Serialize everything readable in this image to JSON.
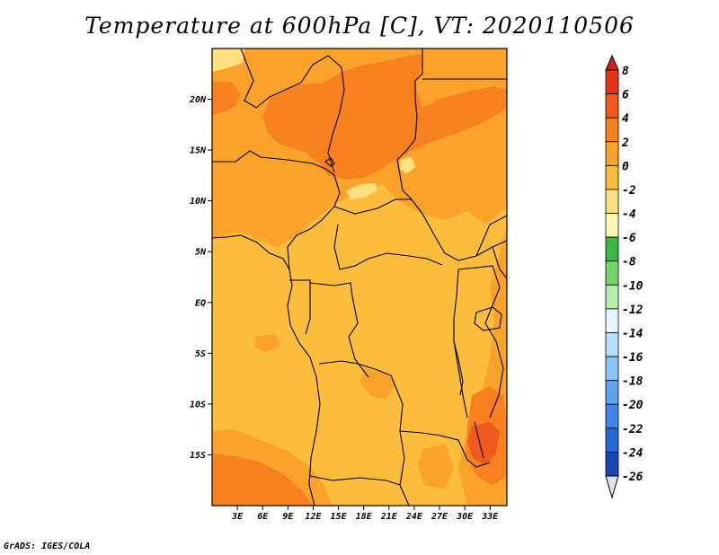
{
  "title": "Temperature at 600hPa [C], VT: 2020110506",
  "footer": "GrADS: IGES/COLA",
  "map": {
    "lon_range": [
      0,
      35
    ],
    "lat_range": [
      -20,
      25
    ],
    "lat_ticks": [
      {
        "value": 20,
        "label": "20N"
      },
      {
        "value": 15,
        "label": "15N"
      },
      {
        "value": 10,
        "label": "10N"
      },
      {
        "value": 5,
        "label": "5N"
      },
      {
        "value": 0,
        "label": "EQ"
      },
      {
        "value": -5,
        "label": "5S"
      },
      {
        "value": -10,
        "label": "10S"
      },
      {
        "value": -15,
        "label": "15S"
      }
    ],
    "lon_ticks": [
      {
        "value": 3,
        "label": "3E"
      },
      {
        "value": 6,
        "label": "6E"
      },
      {
        "value": 9,
        "label": "9E"
      },
      {
        "value": 12,
        "label": "12E"
      },
      {
        "value": 15,
        "label": "15E"
      },
      {
        "value": 18,
        "label": "18E"
      },
      {
        "value": 21,
        "label": "21E"
      },
      {
        "value": 24,
        "label": "24E"
      },
      {
        "value": 27,
        "label": "27E"
      },
      {
        "value": 30,
        "label": "30E"
      },
      {
        "value": 33,
        "label": "33E"
      }
    ]
  },
  "colorbar": {
    "levels": [
      {
        "label": "8",
        "color": "#e33215"
      },
      {
        "label": "6",
        "color": "#f05a1e"
      },
      {
        "label": "4",
        "color": "#f8811f"
      },
      {
        "label": "2",
        "color": "#fba22a"
      },
      {
        "label": "0",
        "color": "#fdbd3c"
      },
      {
        "label": "-2",
        "color": "#fde07f"
      },
      {
        "label": "-4",
        "color": "#fef6b3"
      },
      {
        "label": "-6",
        "color": "#3cb940"
      },
      {
        "label": "-8",
        "color": "#77d56a"
      },
      {
        "label": "-10",
        "color": "#b8ecaa"
      },
      {
        "label": "-12",
        "color": "#e3f7fd"
      },
      {
        "label": "-14",
        "color": "#b5dffa"
      },
      {
        "label": "-16",
        "color": "#88c4f6"
      },
      {
        "label": "-18",
        "color": "#5ea3ef"
      },
      {
        "label": "-20",
        "color": "#3c86e6"
      },
      {
        "label": "-22",
        "color": "#2468d7"
      },
      {
        "label": "-24",
        "color": "#1846b4"
      },
      {
        "label": "-26",
        "color": "#0a1d76"
      }
    ],
    "top_color": "#d51d14",
    "bottom_color": "#e0e0f8"
  },
  "field_colors": {
    "t_0_2": "#fdbd3c",
    "t_2_4": "#fba22a",
    "t_4_6": "#f8811f",
    "t_6_8": "#f05a1e",
    "t_m2_0": "#fde07f"
  }
}
